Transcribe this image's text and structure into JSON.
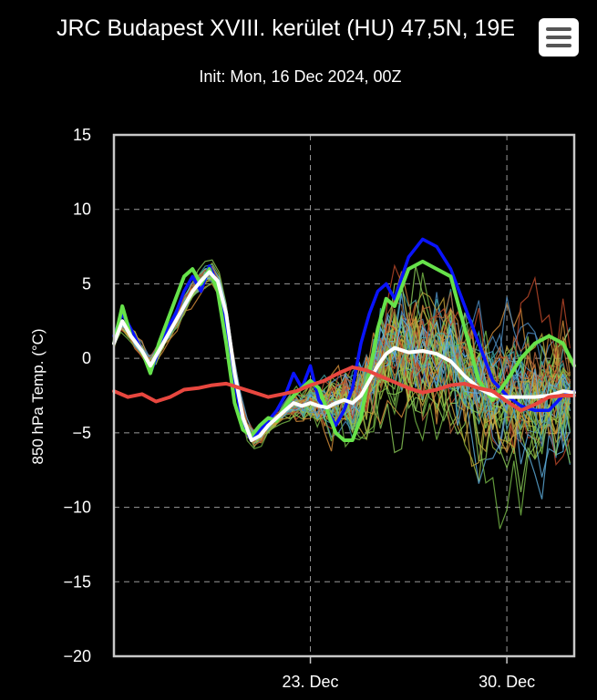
{
  "header": {
    "title": "JRC Budapest XVIII. kerület (HU) 47,5N, 19E",
    "subtitle": "Init: Mon, 16 Dec 2024, 00Z",
    "menu_icon": "hamburger-menu-icon"
  },
  "colors": {
    "background": "#000000",
    "control": "#ff0000",
    "mean": "#ffffff",
    "blue_run": "#0000ff",
    "green_run": "#66e24a"
  },
  "chart_data": {
    "type": "line",
    "title": "JRC Budapest XVIII. kerület (HU) 47,5N, 19E",
    "subtitle": "Init: Mon, 16 Dec 2024, 00Z",
    "ylabel": "850 hPa Temp. (°C)",
    "xlabel": "",
    "ylim": [
      -20,
      15
    ],
    "xlim": [
      16,
      32.4
    ],
    "yticks": [
      15,
      10,
      5,
      0,
      -5,
      -10,
      -15,
      -20
    ],
    "yticklabels": [
      "15",
      "10",
      "5",
      "0",
      "−5",
      "−10",
      "−15",
      "−20"
    ],
    "xticks": [
      23,
      30
    ],
    "xticklabels": [
      "23. Dec",
      "30. Dec"
    ],
    "grid": true,
    "series": [
      {
        "name": "red control",
        "color": "#e8473f",
        "x": [
          16.0,
          16.5,
          17.0,
          17.5,
          18.0,
          18.5,
          19.0,
          19.5,
          20.0,
          20.5,
          21.0,
          21.5,
          22.0,
          22.5,
          23.0,
          23.5,
          24.0,
          24.5,
          25.0,
          25.5,
          26.0,
          26.5,
          27.0,
          27.5,
          28.0,
          28.5,
          29.0,
          29.5,
          30.0,
          30.5,
          31.0,
          31.5,
          32.0,
          32.4
        ],
        "values": [
          -2.2,
          -2.6,
          -2.4,
          -2.9,
          -2.6,
          -2.1,
          -2.0,
          -1.8,
          -1.7,
          -2.0,
          -2.3,
          -2.6,
          -2.4,
          -2.2,
          -1.8,
          -1.5,
          -1.0,
          -0.6,
          -0.8,
          -1.2,
          -1.6,
          -2.0,
          -2.3,
          -2.1,
          -1.8,
          -1.7,
          -2.0,
          -2.2,
          -2.9,
          -3.5,
          -3.1,
          -2.6,
          -2.5,
          -2.5
        ]
      },
      {
        "name": "white mean",
        "color": "#ffffff",
        "x": [
          16.0,
          16.3,
          16.6,
          17.0,
          17.3,
          17.6,
          17.9,
          18.2,
          18.5,
          18.8,
          19.1,
          19.4,
          19.7,
          20.0,
          20.3,
          20.6,
          20.9,
          21.2,
          21.5,
          21.8,
          22.1,
          22.4,
          22.7,
          23.0,
          23.3,
          23.6,
          23.9,
          24.2,
          24.5,
          24.8,
          25.1,
          25.4,
          25.7,
          26.0,
          26.5,
          27.0,
          27.5,
          28.0,
          28.5,
          29.0,
          29.5,
          30.0,
          30.5,
          31.0,
          31.5,
          32.0,
          32.4
        ],
        "values": [
          1.0,
          2.5,
          1.5,
          0.5,
          -0.5,
          0.5,
          1.5,
          2.5,
          3.5,
          4.5,
          5.2,
          5.8,
          5.2,
          3.0,
          -1.0,
          -4.0,
          -5.5,
          -5.2,
          -4.5,
          -4.0,
          -3.5,
          -3.0,
          -3.2,
          -3.0,
          -3.2,
          -3.3,
          -3.0,
          -2.8,
          -3.0,
          -2.5,
          -1.5,
          -0.5,
          0.3,
          0.7,
          0.4,
          0.5,
          0.3,
          -0.2,
          -1.2,
          -2.0,
          -2.5,
          -2.6,
          -2.6,
          -2.6,
          -2.5,
          -2.2,
          -2.3
        ]
      },
      {
        "name": "blue member",
        "color": "#0a14ff",
        "x": [
          16.0,
          16.3,
          16.6,
          17.0,
          17.3,
          17.6,
          17.9,
          18.2,
          18.5,
          18.8,
          19.1,
          19.4,
          19.7,
          20.0,
          20.3,
          20.6,
          20.9,
          21.2,
          21.5,
          21.8,
          22.1,
          22.4,
          22.7,
          23.0,
          23.3,
          23.6,
          23.9,
          24.2,
          24.5,
          24.8,
          25.1,
          25.4,
          25.7,
          26.0,
          26.5,
          27.0,
          27.5,
          28.0,
          28.5,
          29.0,
          29.5,
          30.0,
          30.5,
          31.0,
          31.5,
          32.0,
          32.4
        ],
        "values": [
          1.5,
          3.0,
          2.0,
          0.5,
          -1.0,
          0.5,
          2.0,
          3.0,
          4.5,
          5.5,
          4.5,
          6.2,
          5.0,
          2.0,
          -1.5,
          -4.5,
          -5.5,
          -4.8,
          -4.2,
          -3.5,
          -2.5,
          -1.0,
          -2.0,
          -0.5,
          -2.8,
          -3.5,
          -4.5,
          -3.5,
          -2.0,
          1.0,
          3.0,
          4.5,
          5.0,
          4.0,
          6.8,
          8.0,
          7.5,
          6.0,
          3.5,
          1.0,
          -1.5,
          -2.5,
          -3.2,
          -3.5,
          -3.5,
          -2.5,
          -2.2
        ]
      },
      {
        "name": "green member",
        "color": "#66e24a",
        "x": [
          16.0,
          16.3,
          16.6,
          17.0,
          17.3,
          17.6,
          17.9,
          18.2,
          18.5,
          18.8,
          19.1,
          19.4,
          19.7,
          20.0,
          20.3,
          20.6,
          20.9,
          21.2,
          21.5,
          21.8,
          22.1,
          22.4,
          22.7,
          23.0,
          23.3,
          23.6,
          23.9,
          24.2,
          24.5,
          24.8,
          25.1,
          25.4,
          25.7,
          26.0,
          26.5,
          27.0,
          27.5,
          28.0,
          28.5,
          29.0,
          29.5,
          30.0,
          30.5,
          31.0,
          31.5,
          32.0,
          32.4
        ],
        "values": [
          1.0,
          3.5,
          1.5,
          0.5,
          -1.0,
          1.0,
          2.5,
          4.0,
          5.5,
          6.0,
          5.0,
          6.0,
          4.5,
          1.0,
          -3.0,
          -4.8,
          -5.2,
          -4.5,
          -4.0,
          -4.2,
          -3.2,
          -2.5,
          -2.0,
          -1.5,
          -2.0,
          -3.5,
          -5.0,
          -5.5,
          -5.5,
          -4.0,
          -1.0,
          2.0,
          4.0,
          3.5,
          6.0,
          6.5,
          6.0,
          5.5,
          2.0,
          -1.5,
          -2.8,
          -1.5,
          0.0,
          1.0,
          1.5,
          1.0,
          -0.5
        ]
      }
    ],
    "ensemble": {
      "description": "about 50 thin ensemble member lines in assorted colors",
      "colors": [
        "#4f8ec4",
        "#7bbf4a",
        "#c9a83a",
        "#c24a2a",
        "#3fa7a7",
        "#8fd05a",
        "#b5673a",
        "#5fb0e0",
        "#a0c040",
        "#d8903a"
      ]
    }
  }
}
